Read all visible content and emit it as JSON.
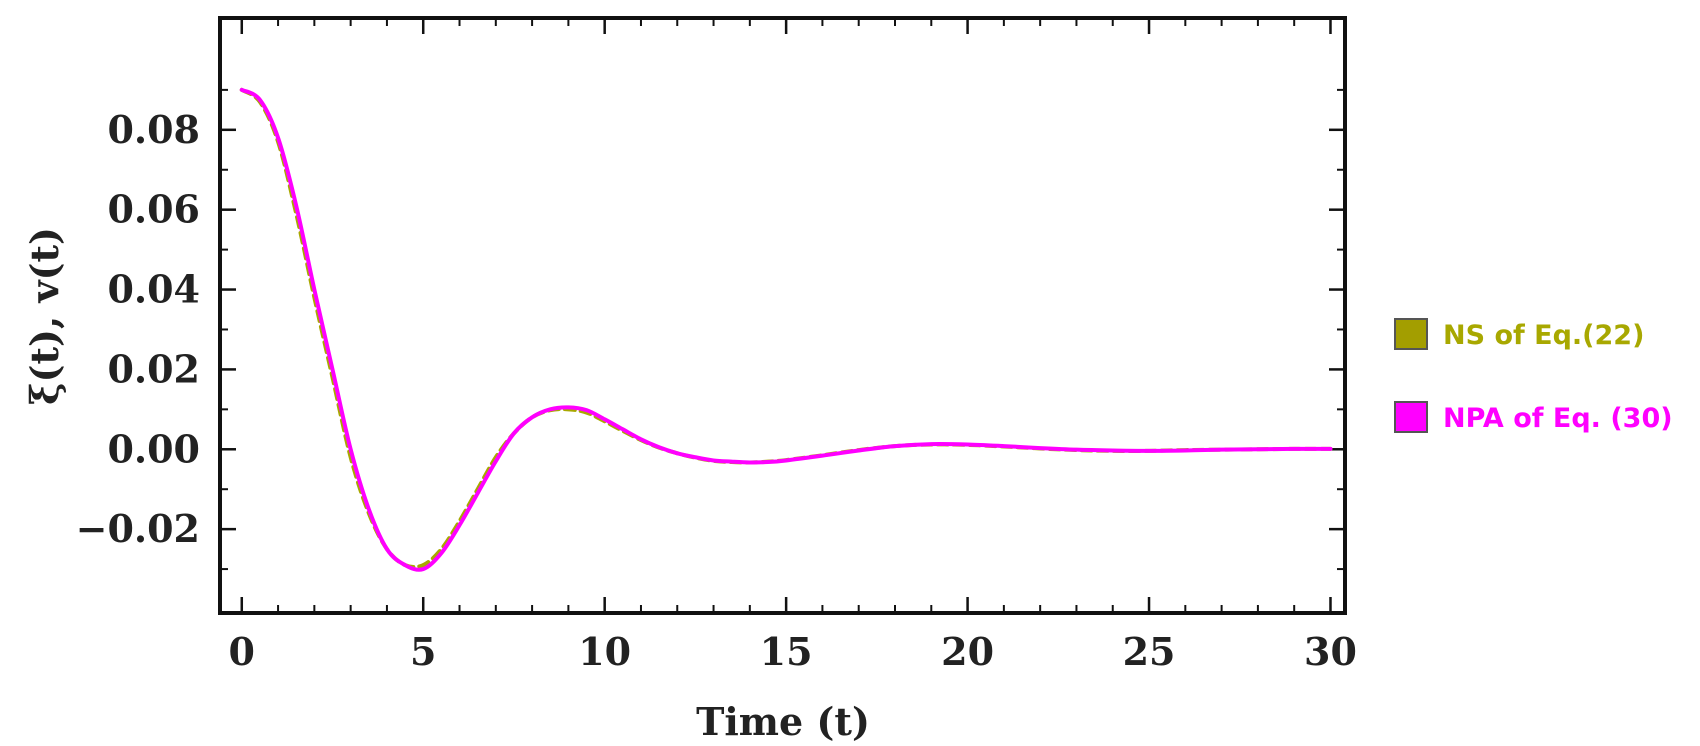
{
  "chart_data": {
    "type": "line",
    "xlabel": "Time (t)",
    "ylabel": "ξ(t), v(t)",
    "xlim": [
      -0.6,
      30.4
    ],
    "ylim": [
      -0.041,
      0.108
    ],
    "x_ticks": [
      0,
      5,
      10,
      15,
      20,
      25,
      30
    ],
    "x_tick_labels": [
      "0",
      "5",
      "10",
      "15",
      "20",
      "25",
      "30"
    ],
    "y_ticks": [
      -0.02,
      0.0,
      0.02,
      0.04,
      0.06,
      0.08
    ],
    "y_tick_labels": [
      "−0.02",
      "0.00",
      "0.02",
      "0.04",
      "0.06",
      "0.08"
    ],
    "grid": false,
    "frame": true,
    "legend_position": "right",
    "series": [
      {
        "name": "NS of Eq.(22)",
        "color": "#a8a800",
        "style": "dashed",
        "x": [
          0,
          0.5,
          1,
          1.5,
          2,
          2.5,
          3,
          3.5,
          4,
          4.5,
          5,
          5.5,
          6,
          6.5,
          7,
          7.5,
          8,
          8.5,
          9,
          9.5,
          10,
          10.5,
          11,
          11.5,
          12,
          12.5,
          13,
          13.5,
          14,
          14.5,
          15,
          16,
          17,
          18,
          19,
          20,
          21,
          22,
          23,
          24,
          25,
          26,
          27,
          28,
          29,
          30
        ],
        "y": [
          0.09,
          0.087,
          0.077,
          0.059,
          0.038,
          0.018,
          -0.002,
          -0.016,
          -0.025,
          -0.029,
          -0.029,
          -0.025,
          -0.018,
          -0.01,
          -0.002,
          0.004,
          0.008,
          0.0098,
          0.01,
          0.0092,
          0.007,
          0.0046,
          0.0023,
          0.0004,
          -0.001,
          -0.0021,
          -0.0029,
          -0.0032,
          -0.0033,
          -0.0031,
          -0.0027,
          -0.0015,
          -0.0002,
          0.0008,
          0.0012,
          0.0011,
          0.0007,
          0.0002,
          -0.0002,
          -0.0004,
          -0.0004,
          -0.0002,
          -0.0001,
          0.0,
          0.0001,
          0.0001
        ]
      },
      {
        "name": "NPA of Eq. (30)",
        "color": "#ff00ff",
        "style": "solid",
        "x": [
          0,
          0.5,
          1,
          1.5,
          2,
          2.5,
          3,
          3.5,
          4,
          4.5,
          5,
          5.5,
          6,
          6.5,
          7,
          7.5,
          8,
          8.5,
          9,
          9.5,
          10,
          10.5,
          11,
          11.5,
          12,
          12.5,
          13,
          13.5,
          14,
          14.5,
          15,
          16,
          17,
          18,
          19,
          20,
          21,
          22,
          23,
          24,
          25,
          26,
          27,
          28,
          29,
          30
        ],
        "y": [
          0.09,
          0.0875,
          0.078,
          0.061,
          0.04,
          0.02,
          0.0,
          -0.015,
          -0.025,
          -0.029,
          -0.03,
          -0.026,
          -0.019,
          -0.011,
          -0.003,
          0.004,
          0.008,
          0.01,
          0.0105,
          0.0098,
          0.0075,
          0.005,
          0.0025,
          0.0005,
          -0.001,
          -0.002,
          -0.0028,
          -0.0031,
          -0.0033,
          -0.0032,
          -0.0028,
          -0.0016,
          -0.0003,
          0.0008,
          0.0013,
          0.0012,
          0.0008,
          0.0003,
          -0.0001,
          -0.0003,
          -0.0004,
          -0.0003,
          -0.0001,
          0.0,
          0.0001,
          0.0001
        ]
      }
    ]
  }
}
